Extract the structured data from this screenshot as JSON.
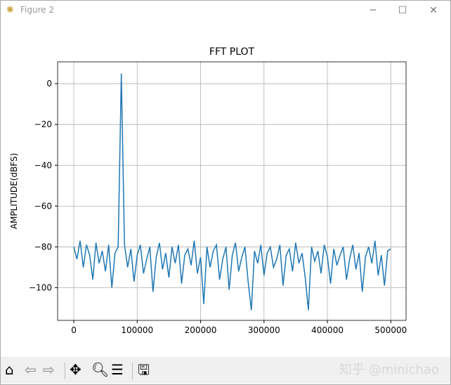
{
  "window": {
    "title": "Figure 2",
    "icon": "matplotlib-icon",
    "controls": [
      "minimize",
      "maximize",
      "close"
    ]
  },
  "toolbar": {
    "buttons": [
      "home",
      "back",
      "forward",
      "pan",
      "zoom",
      "configure-subplots",
      "save"
    ]
  },
  "watermark": "知乎 @minichao",
  "chart_data": {
    "type": "line",
    "title": "FFT PLOT",
    "xlabel": "",
    "ylabel": "AMPLITUDE(dBFS)",
    "xlim": [
      -25500,
      524000
    ],
    "ylim": [
      -116,
      10.7
    ],
    "xticks": [
      0,
      100000,
      200000,
      300000,
      400000,
      500000
    ],
    "xtick_labels": [
      "0",
      "100000",
      "200000",
      "300000",
      "400000",
      "500000"
    ],
    "yticks": [
      0,
      -20,
      -40,
      -60,
      -80,
      -100
    ],
    "ytick_labels": [
      "0",
      "−20",
      "−40",
      "−60",
      "−80",
      "−100"
    ],
    "grid": true,
    "color": "#1f77b4",
    "x_step": 5000,
    "values": [
      -80,
      -86,
      -77,
      -90,
      -79,
      -84,
      -96,
      -78,
      -88,
      -82,
      -92,
      -79,
      -100,
      -83,
      -80,
      5,
      -79,
      -90,
      -81,
      -97,
      -84,
      -79,
      -93,
      -86,
      -80,
      -102,
      -85,
      -78,
      -91,
      -83,
      -95,
      -80,
      -88,
      -79,
      -98,
      -84,
      -81,
      -89,
      -77,
      -93,
      -85,
      -108,
      -80,
      -90,
      -82,
      -79,
      -96,
      -86,
      -80,
      -101,
      -84,
      -78,
      -92,
      -85,
      -80,
      -97,
      -111,
      -82,
      -88,
      -79,
      -94,
      -83,
      -80,
      -90,
      -86,
      -79,
      -99,
      -84,
      -81,
      -92,
      -78,
      -88,
      -83,
      -95,
      -111,
      -80,
      -87,
      -82,
      -93,
      -79,
      -85,
      -98,
      -81,
      -89,
      -84,
      -80,
      -96,
      -86,
      -79,
      -91,
      -83,
      -102,
      -85,
      -80,
      -88,
      -77,
      -94,
      -84,
      -99,
      -82,
      -81
    ]
  }
}
